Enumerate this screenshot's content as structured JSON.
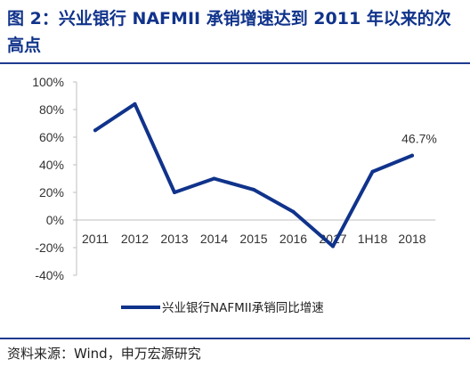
{
  "header": {
    "title": "图 2：兴业银行 NAFMII 承销增速达到 2011 年以来的次高点"
  },
  "footer": {
    "source": "资料来源：Wind，申万宏源研究"
  },
  "colors": {
    "series": "#10338b",
    "title": "#10338b",
    "rule": "#1f3a8f",
    "axis": "#bfbfbf"
  },
  "chart_data": {
    "type": "line",
    "categories": [
      "2011",
      "2012",
      "2013",
      "2014",
      "2015",
      "2016",
      "2017",
      "1H18",
      "2018"
    ],
    "series": [
      {
        "name": "兴业银行NAFMII承销同比增速",
        "values": [
          65,
          84,
          20,
          30,
          22,
          6,
          -19,
          35,
          46.7
        ]
      }
    ],
    "y_ticks": [
      "100%",
      "80%",
      "60%",
      "40%",
      "20%",
      "0%",
      "-20%",
      "-40%"
    ],
    "ylim": [
      -40,
      100
    ],
    "data_labels": [
      {
        "index": 8,
        "text": "46.7%"
      }
    ],
    "grid": false,
    "legend": "bottom"
  }
}
